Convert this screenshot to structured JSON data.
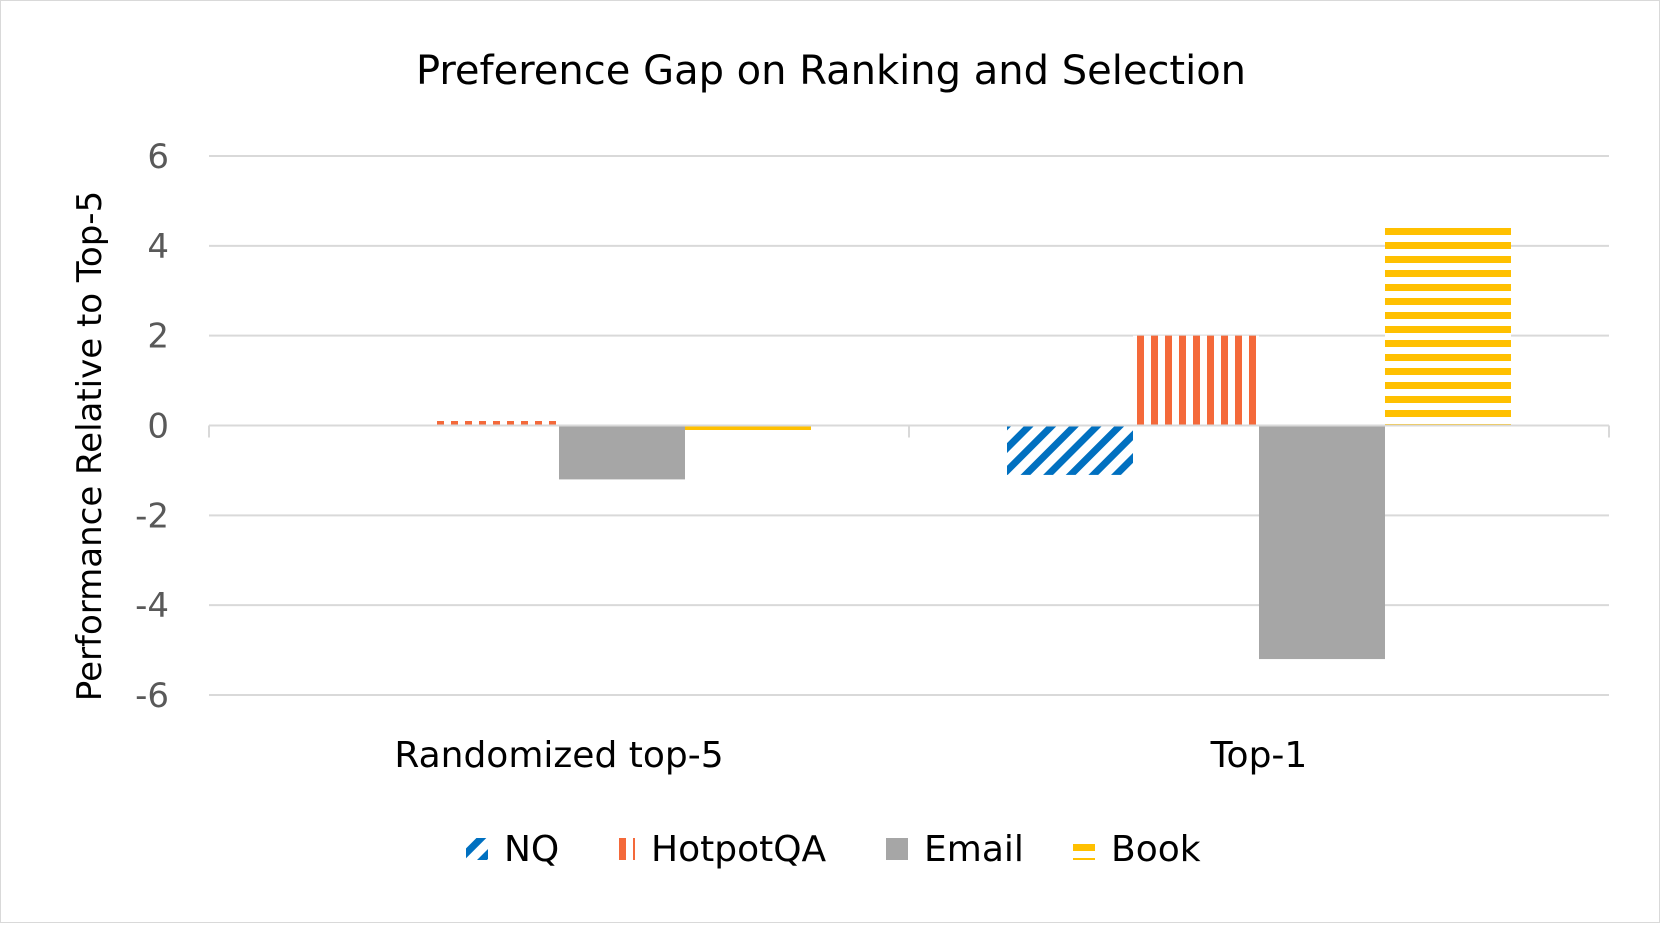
{
  "chart_data": {
    "type": "bar",
    "title": "Preference Gap on Ranking and Selection",
    "xlabel": "",
    "ylabel": "Performance Relative to Top-5",
    "categories": [
      "Randomized top-5",
      "Top-1"
    ],
    "ylim": [
      -6,
      6
    ],
    "yticks": [
      6,
      4,
      2,
      0,
      -2,
      -4,
      -6
    ],
    "grid": true,
    "legend_position": "bottom",
    "series": [
      {
        "name": "NQ",
        "values": [
          0.0,
          -1.1
        ],
        "color": "#0070c0",
        "pattern": "diagonal-stripes"
      },
      {
        "name": "HotpotQA",
        "values": [
          0.1,
          2.0
        ],
        "color": "#f4693a",
        "pattern": "vertical-stripes"
      },
      {
        "name": "Email",
        "values": [
          -1.2,
          -5.2
        ],
        "color": "#a6a6a6",
        "pattern": "solid"
      },
      {
        "name": "Book",
        "values": [
          -0.1,
          4.5
        ],
        "color": "#ffc000",
        "pattern": "horizontal-stripes"
      }
    ]
  }
}
